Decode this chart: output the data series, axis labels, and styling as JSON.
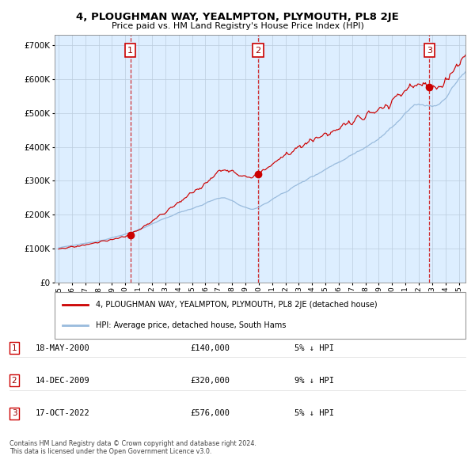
{
  "title": "4, PLOUGHMAN WAY, YEALMPTON, PLYMOUTH, PL8 2JE",
  "subtitle": "Price paid vs. HM Land Registry's House Price Index (HPI)",
  "hpi_label": "HPI: Average price, detached house, South Hams",
  "property_label": "4, PLOUGHMAN WAY, YEALMPTON, PLYMOUTH, PL8 2JE (detached house)",
  "transactions": [
    {
      "num": 1,
      "date": "18-MAY-2000",
      "price": 140000,
      "pct": "5%",
      "dir": "↓",
      "x_year": 2000.37
    },
    {
      "num": 2,
      "date": "14-DEC-2009",
      "price": 320000,
      "pct": "9%",
      "dir": "↓",
      "x_year": 2009.95
    },
    {
      "num": 3,
      "date": "17-OCT-2022",
      "price": 576000,
      "pct": "5%",
      "dir": "↓",
      "x_year": 2022.79
    }
  ],
  "hpi_color": "#99bbdd",
  "property_color": "#cc0000",
  "background_color": "#ddeeff",
  "grid_color": "#bbccdd",
  "ylim": [
    0,
    730000
  ],
  "xlim_start": 1994.7,
  "xlim_end": 2025.5,
  "footnote": "Contains HM Land Registry data © Crown copyright and database right 2024.\nThis data is licensed under the Open Government Licence v3.0."
}
